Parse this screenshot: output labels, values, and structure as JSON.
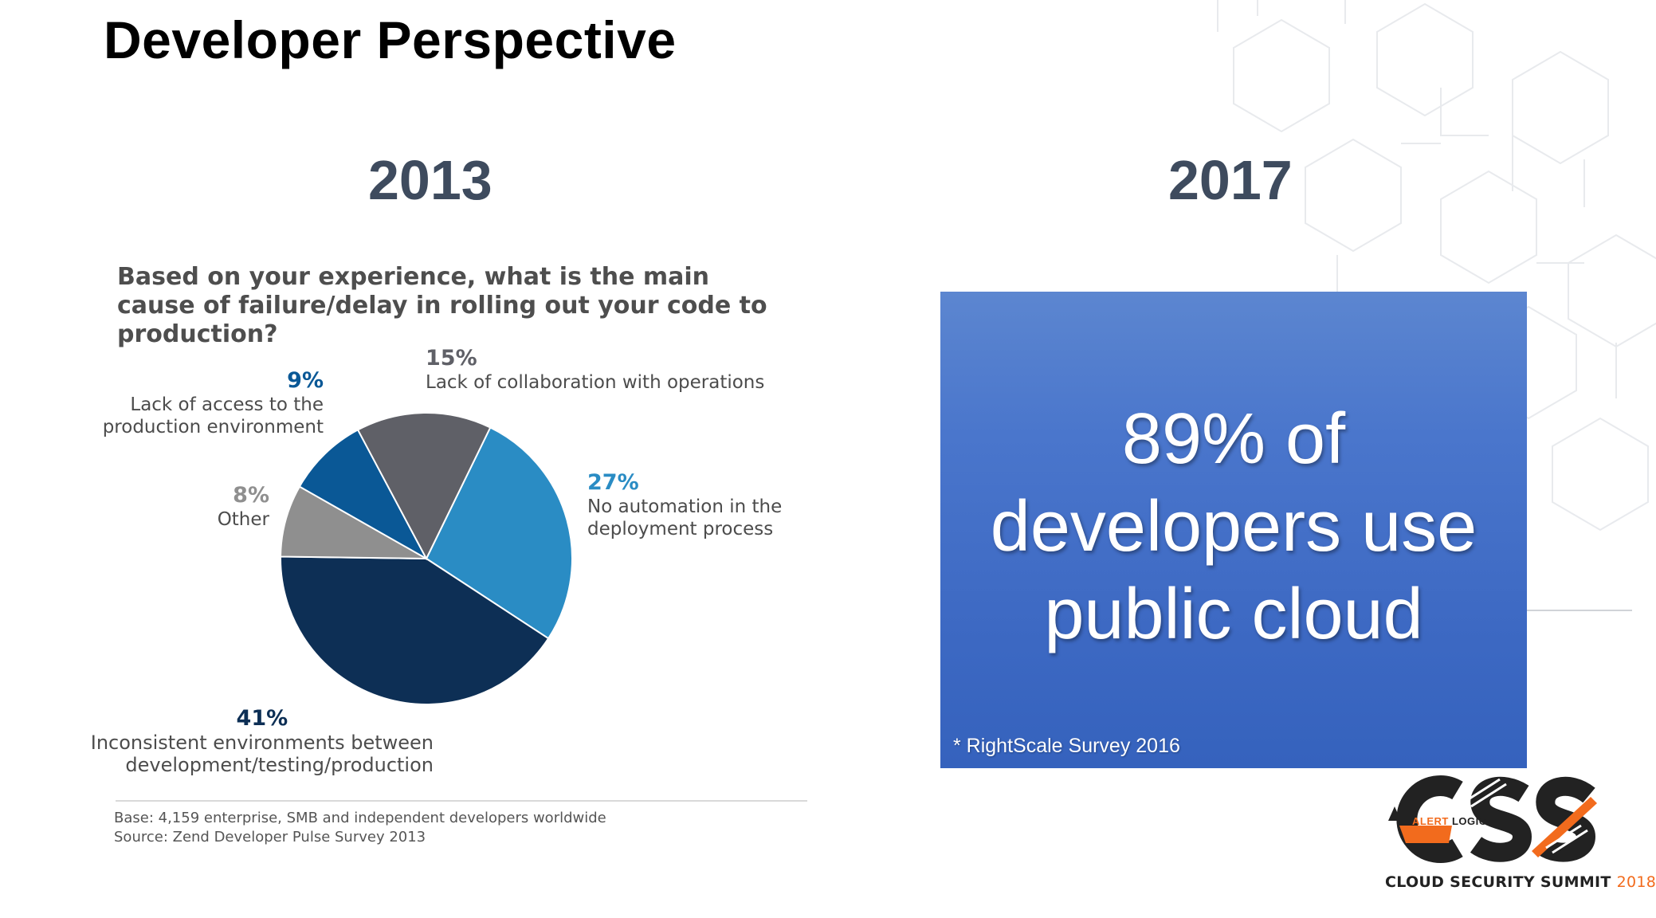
{
  "slide": {
    "title": "Developer Perspective"
  },
  "years": {
    "left": "2013",
    "right": "2017"
  },
  "chart_data": {
    "type": "pie",
    "title": "Based on your experience, what is the main cause of failure/delay in rolling out your code to production?",
    "slices": [
      {
        "label_lines": [
          "No automation in the",
          "deployment process"
        ],
        "pct_label": "27%",
        "value": 27,
        "color": "#2a8cc4"
      },
      {
        "label_lines": [
          "Inconsistent environments between",
          "development/testing/production"
        ],
        "pct_label": "41%",
        "value": 41,
        "color": "#0d2f55"
      },
      {
        "label_lines": [
          "Other"
        ],
        "pct_label": "8%",
        "value": 8,
        "color": "#8f8f8f"
      },
      {
        "label_lines": [
          "Lack of access to the",
          "production environment"
        ],
        "pct_label": "9%",
        "value": 9,
        "color": "#0a5896"
      },
      {
        "label_lines": [
          "Lack of collaboration with operations"
        ],
        "pct_label": "15%",
        "value": 15,
        "color": "#5f6067"
      }
    ],
    "start_angle_deg": 26,
    "direction": "clockwise",
    "footnotes": [
      "Base: 4,159 enterprise, SMB and independent developers worldwide",
      "Source: Zend Developer Pulse Survey 2013"
    ]
  },
  "stat_box": {
    "lines": [
      "89% of",
      "developers use",
      "public cloud"
    ],
    "source": "* RightScale Survey 2016",
    "color": "#4a76cc"
  },
  "logo": {
    "brand_prefix": "ALERT ",
    "brand_suffix": "LOGIC",
    "monogram": "CSS",
    "tagline": "CLOUD SECURITY SUMMIT",
    "tagline_year": "2018",
    "accent_color": "#f26b1d"
  }
}
